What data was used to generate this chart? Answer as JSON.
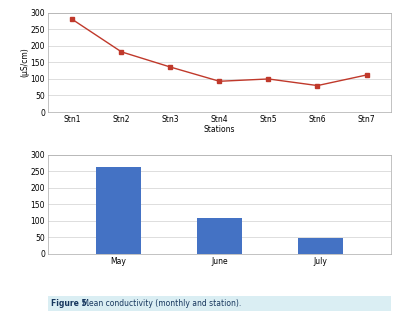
{
  "line_stations": [
    "Stn1",
    "Stn2",
    "Stn3",
    "Stn4",
    "Stn5",
    "Stn6",
    "Stn7"
  ],
  "line_values": [
    280,
    182,
    136,
    93,
    100,
    80,
    112
  ],
  "line_color": "#c0392b",
  "line_marker": "s",
  "line_ylabel": "(μS/cm)",
  "line_xlabel": "Stations",
  "line_ylim": [
    0,
    300
  ],
  "line_yticks": [
    0,
    50,
    100,
    150,
    200,
    250,
    300
  ],
  "bar_months": [
    "May",
    "June",
    "July"
  ],
  "bar_values": [
    263,
    108,
    47
  ],
  "bar_color": "#4472c4",
  "bar_ylim": [
    0,
    300
  ],
  "bar_yticks": [
    0,
    50,
    100,
    150,
    200,
    250,
    300
  ],
  "caption_bold": "Figure 5.",
  "caption_normal": " Mean conductivity (monthly and station).",
  "caption_color": "#17375e",
  "caption_bg": "#daeef3",
  "bg_color": "#ffffff",
  "grid_color": "#d0d0d0",
  "spine_color": "#aaaaaa"
}
